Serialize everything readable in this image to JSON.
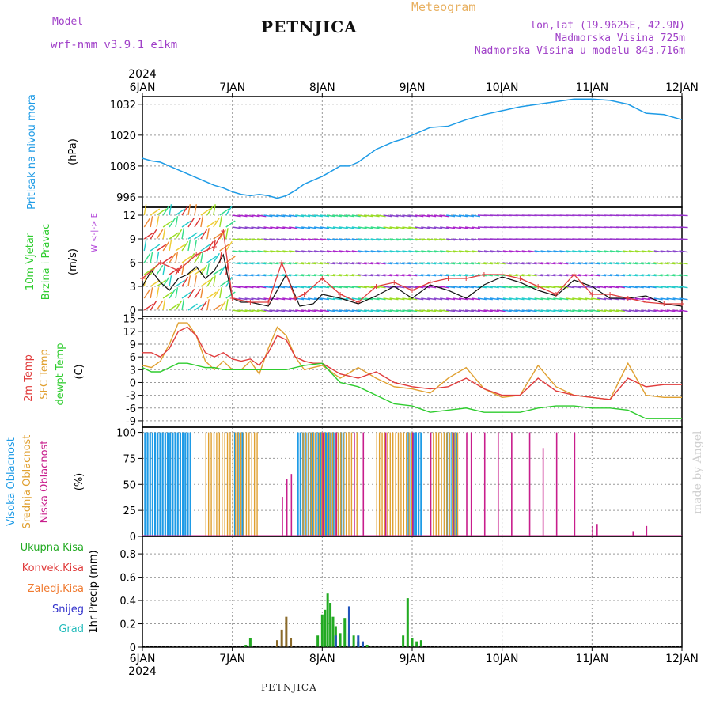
{
  "header": {
    "model_label": "Model",
    "model_name": "wrf-nmm_v3.9.1  e1km",
    "station": "PETNJICA",
    "meteogram": "Meteogram",
    "lonlat": "lon,lat (19.9625E, 42.9N)",
    "altitude": "Nadmorska Visina 725m",
    "model_altitude": "Nadmorska Visina u modelu 843.716m",
    "footer_station": "PETNJICA",
    "watermark": "made by Angel"
  },
  "colors": {
    "pressure": "#1e9be6",
    "red": "#e03c3c",
    "orange": "#e0a030",
    "green": "#2ecc2e",
    "blue_cloud": "#1e9be6",
    "magenta": "#c81e8c",
    "purple": "#b040d8",
    "precip_green": "#22aa22",
    "precip_blue": "#2255bb"
  },
  "chart_data": [
    {
      "type": "line",
      "name": "pressure",
      "ylabel": [
        "Pritisak na nivou mora",
        "(hPa)"
      ],
      "ylim": [
        992,
        1035
      ],
      "yticks": [
        996,
        1008,
        1020,
        1032
      ],
      "x_year": "2024",
      "x_ticks": [
        "6JAN",
        "7JAN",
        "8JAN",
        "9JAN",
        "10JAN",
        "11JAN",
        "12JAN"
      ],
      "series": [
        {
          "x": [
            0,
            0.1,
            0.2,
            0.3,
            0.4,
            0.5,
            0.6,
            0.7,
            0.8,
            0.9,
            1.0,
            1.1,
            1.2,
            1.3,
            1.4,
            1.5,
            1.6,
            1.7,
            1.8,
            1.9,
            2.0,
            2.1,
            2.2,
            2.3,
            2.4,
            2.5,
            2.6,
            2.7,
            2.8,
            2.9,
            3.0,
            3.2,
            3.4,
            3.6,
            3.8,
            4.0,
            4.2,
            4.4,
            4.6,
            4.8,
            5.0,
            5.2,
            5.4,
            5.6,
            5.8,
            6.0
          ],
          "y": [
            1011,
            1010,
            1009.5,
            1008,
            1006.5,
            1005,
            1003.5,
            1002,
            1000.5,
            999.5,
            998,
            997,
            996.5,
            997,
            996.5,
            995.5,
            996.5,
            998.5,
            1001,
            1002.5,
            1004,
            1006,
            1008,
            1008,
            1009.5,
            1012,
            1014.5,
            1016,
            1017.5,
            1018.5,
            1020,
            1023,
            1023.5,
            1026,
            1028,
            1029.5,
            1031,
            1032,
            1033,
            1034,
            1034,
            1033.5,
            1032,
            1028.5,
            1028,
            1026
          ]
        }
      ]
    },
    {
      "type": "line",
      "name": "wind",
      "ylabel": [
        "10m Vjetar",
        "Brzina i Pravac",
        "(m/s)"
      ],
      "compass": "W <-|-> E",
      "ylim": [
        -0.8,
        13
      ],
      "yticks": [
        0,
        3,
        6,
        9,
        12
      ],
      "series": [
        {
          "name": "speed",
          "x": [
            0,
            0.1,
            0.2,
            0.3,
            0.4,
            0.5,
            0.6,
            0.7,
            0.8,
            0.9,
            1.0,
            1.1,
            1.2,
            1.4,
            1.6,
            1.75,
            1.9,
            2.0,
            2.2,
            2.4,
            2.6,
            2.8,
            3.0,
            3.2,
            3.4,
            3.6,
            3.8,
            4.0,
            4.2,
            4.4,
            4.6,
            4.8,
            5.0,
            5.2,
            5.4,
            5.6,
            5.8,
            6.0
          ],
          "y": [
            3,
            5,
            3.5,
            2.5,
            4,
            4.5,
            5.5,
            4,
            5,
            7,
            1.5,
            1,
            1,
            0.5,
            4.5,
            0.5,
            0.8,
            2,
            1.5,
            0.8,
            1.8,
            3,
            1.5,
            3.2,
            2.5,
            1.5,
            3.2,
            4.2,
            3.5,
            2.5,
            1.8,
            3.8,
            3,
            1.5,
            1.5,
            1.8,
            0.8,
            0.5
          ]
        },
        {
          "name": "gust",
          "x": [
            0,
            0.2,
            0.4,
            0.6,
            0.8,
            0.9,
            1.0,
            1.2,
            1.4,
            1.55,
            1.7,
            1.8,
            2.0,
            2.2,
            2.4,
            2.6,
            2.8,
            3.0,
            3.2,
            3.4,
            3.6,
            3.8,
            4.0,
            4.2,
            4.4,
            4.6,
            4.8,
            5.0,
            5.2,
            5.4,
            5.6,
            5.8,
            6.0
          ],
          "y": [
            4,
            6,
            5,
            7,
            8,
            10,
            1.5,
            1,
            1,
            6,
            1.5,
            2,
            4,
            2,
            1,
            3,
            3.5,
            2.5,
            3.5,
            4,
            4,
            4.5,
            4.5,
            4,
            3,
            2,
            4.5,
            2,
            2,
            1.5,
            1,
            0.8,
            0.8
          ]
        }
      ]
    },
    {
      "type": "line",
      "name": "temperature",
      "ylabel": [
        "2m Temp",
        "SFC Temp",
        "dewpt Temp",
        "(C)"
      ],
      "ylim": [
        -10.5,
        15.5
      ],
      "yticks": [
        -9,
        -6,
        -3,
        0,
        3,
        6,
        9,
        12,
        15
      ],
      "series": [
        {
          "name": "2m",
          "x": [
            0,
            0.1,
            0.2,
            0.3,
            0.4,
            0.5,
            0.6,
            0.7,
            0.8,
            0.9,
            1.0,
            1.1,
            1.2,
            1.3,
            1.4,
            1.5,
            1.6,
            1.7,
            1.8,
            1.9,
            2.0,
            2.2,
            2.4,
            2.6,
            2.8,
            3.0,
            3.2,
            3.4,
            3.6,
            3.8,
            4.0,
            4.2,
            4.4,
            4.6,
            4.8,
            5.0,
            5.2,
            5.4,
            5.6,
            5.8,
            6.0
          ],
          "y": [
            7,
            7,
            6,
            8,
            12,
            13,
            11,
            7,
            6,
            7,
            5.5,
            5,
            5.5,
            4,
            7,
            11,
            10,
            6,
            5,
            4.5,
            4.5,
            2,
            1,
            2.5,
            0,
            -1,
            -1.5,
            -1,
            1,
            -1.5,
            -3,
            -3,
            1,
            -2,
            -3,
            -3.5,
            -4,
            1,
            -1,
            -0.5,
            -0.5
          ]
        },
        {
          "name": "sfc",
          "x": [
            0,
            0.1,
            0.2,
            0.3,
            0.4,
            0.5,
            0.6,
            0.7,
            0.8,
            0.9,
            1.0,
            1.1,
            1.2,
            1.3,
            1.4,
            1.5,
            1.6,
            1.7,
            1.8,
            1.9,
            2.0,
            2.2,
            2.4,
            2.6,
            2.8,
            3.0,
            3.2,
            3.4,
            3.6,
            3.8,
            4.0,
            4.2,
            4.4,
            4.6,
            4.8,
            5.0,
            5.2,
            5.4,
            5.6,
            5.8,
            6.0
          ],
          "y": [
            4,
            3.5,
            5,
            9,
            14,
            14,
            11,
            5,
            3,
            5,
            3,
            3,
            5,
            2,
            8,
            13,
            11,
            6,
            3,
            3.5,
            4,
            1,
            3.5,
            1,
            -1,
            -1.5,
            -2.5,
            1,
            3.5,
            -1.5,
            -3.5,
            -3,
            4,
            -1,
            -3,
            -3.5,
            -4,
            4.5,
            -3,
            -3.5,
            -3.5
          ]
        },
        {
          "name": "dewpt",
          "x": [
            0,
            0.1,
            0.2,
            0.3,
            0.4,
            0.5,
            0.6,
            0.7,
            0.8,
            0.9,
            1.0,
            1.1,
            1.2,
            1.4,
            1.6,
            1.8,
            2.0,
            2.2,
            2.4,
            2.6,
            2.8,
            3.0,
            3.2,
            3.4,
            3.6,
            3.8,
            4.0,
            4.2,
            4.4,
            4.6,
            4.8,
            5.0,
            5.2,
            5.4,
            5.6,
            5.8,
            6.0
          ],
          "y": [
            3.5,
            2.5,
            2.5,
            3.5,
            4.5,
            4.5,
            4,
            3.5,
            3.5,
            3,
            3,
            3,
            3,
            3,
            3,
            4,
            4.5,
            0,
            -1,
            -3,
            -5,
            -5.5,
            -7,
            -6.5,
            -6,
            -7,
            -7,
            -7,
            -6,
            -5.5,
            -5.5,
            -6,
            -6,
            -6.5,
            -8.5,
            -8.5,
            -8.5
          ]
        }
      ]
    },
    {
      "type": "bar",
      "name": "cloud",
      "ylabel": [
        "Visoka Oblacnost",
        "Srednja Oblacnost",
        "Niska Oblacnost",
        "(%)"
      ],
      "ylim": [
        0,
        105
      ],
      "yticks": [
        0,
        25,
        50,
        75,
        100
      ],
      "series": [
        {
          "name": "high",
          "ranges": [
            [
              0.02,
              0.55
            ],
            [
              1.02,
              1.12
            ],
            [
              1.72,
              1.78
            ],
            [
              1.78,
              2.25
            ],
            [
              2.95,
              3.1
            ],
            [
              3.35,
              3.5
            ]
          ],
          "values": [
            100,
            100,
            100,
            100,
            100,
            100
          ]
        },
        {
          "name": "mid",
          "ranges": [
            [
              0.7,
              1.3
            ],
            [
              1.78,
              2.4
            ],
            [
              2.6,
              3.0
            ],
            [
              3.2,
              3.5
            ]
          ],
          "values": [
            100,
            100,
            100,
            100
          ]
        },
        {
          "name": "low_bars",
          "x": [
            1.55,
            1.6,
            1.65,
            2.0,
            2.15,
            2.35,
            2.45,
            2.7,
            3.0,
            3.2,
            3.45,
            3.6,
            3.65,
            3.8,
            3.95,
            4.1,
            4.3,
            4.45,
            4.6,
            4.8,
            5.0,
            5.05,
            5.45,
            5.6
          ],
          "y": [
            38,
            55,
            60,
            100,
            100,
            100,
            100,
            100,
            100,
            100,
            100,
            100,
            100,
            100,
            100,
            100,
            100,
            85,
            100,
            100,
            10,
            12,
            5,
            10
          ]
        }
      ]
    },
    {
      "type": "bar",
      "name": "precip",
      "ylabel": [
        "1hr Precip (mm)"
      ],
      "legend": [
        "Ukupna Kisa",
        "Konvek.Kisa",
        "Zaledj.Kisa",
        "Snijeg",
        "Grad"
      ],
      "ylim": [
        0,
        0.95
      ],
      "yticks": [
        0,
        0.2,
        0.4,
        0.6,
        0.8
      ],
      "series": [
        {
          "name": "total",
          "x": [
            1.15,
            1.2,
            1.5,
            1.55,
            1.6,
            1.65,
            1.95,
            2.0,
            2.03,
            2.06,
            2.09,
            2.12,
            2.15,
            2.2,
            2.25,
            2.3,
            2.35,
            2.4,
            2.45,
            2.5,
            2.9,
            2.95,
            3.0,
            3.05,
            3.1
          ],
          "y": [
            0.02,
            0.08,
            0.06,
            0.15,
            0.26,
            0.08,
            0.1,
            0.28,
            0.32,
            0.46,
            0.38,
            0.26,
            0.18,
            0.12,
            0.25,
            0.12,
            0.1,
            0.05,
            0.03,
            0.02,
            0.1,
            0.42,
            0.08,
            0.05,
            0.06
          ]
        },
        {
          "name": "snow",
          "x": [
            2.15,
            2.3,
            2.4,
            2.45
          ],
          "y": [
            0.1,
            0.35,
            0.1,
            0.05
          ]
        }
      ]
    }
  ]
}
